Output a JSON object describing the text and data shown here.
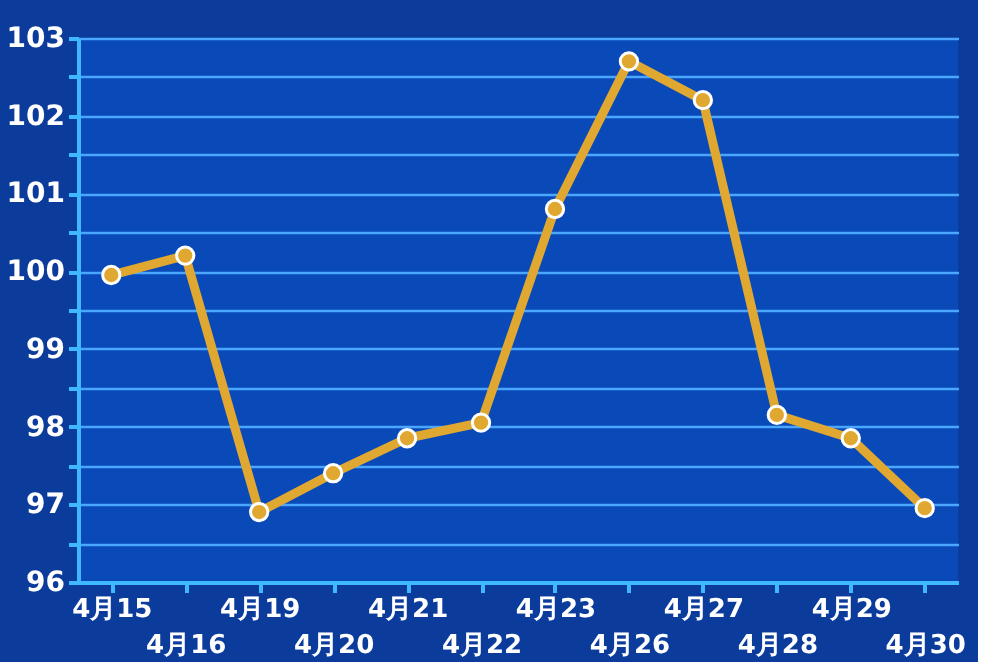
{
  "chart_data": {
    "type": "line",
    "categories": [
      "4月15",
      "4月16",
      "4月19",
      "4月20",
      "4月21",
      "4月22",
      "4月23",
      "4月26",
      "4月27",
      "4月28",
      "4月29",
      "4月30"
    ],
    "series": [
      {
        "color": "#e0a830",
        "values": [
          99.95,
          100.2,
          96.9,
          97.4,
          97.85,
          98.05,
          100.8,
          102.7,
          102.2,
          98.15,
          97.85,
          96.95
        ]
      }
    ],
    "ylim": [
      96,
      103
    ],
    "yticks": [
      96,
      {
        "value": 96.5,
        "label": null
      },
      97,
      {
        "value": 97.5,
        "label": null
      },
      98,
      {
        "value": 98.5,
        "label": null
      },
      99,
      {
        "value": 99.5,
        "label": null
      },
      100,
      {
        "value": 100.5,
        "label": null
      },
      101,
      {
        "value": 101.5,
        "label": null
      },
      102,
      {
        "value": 102.5,
        "label": null
      },
      103
    ],
    "grid": "y",
    "marker": "circle",
    "line_style": "solid"
  }
}
